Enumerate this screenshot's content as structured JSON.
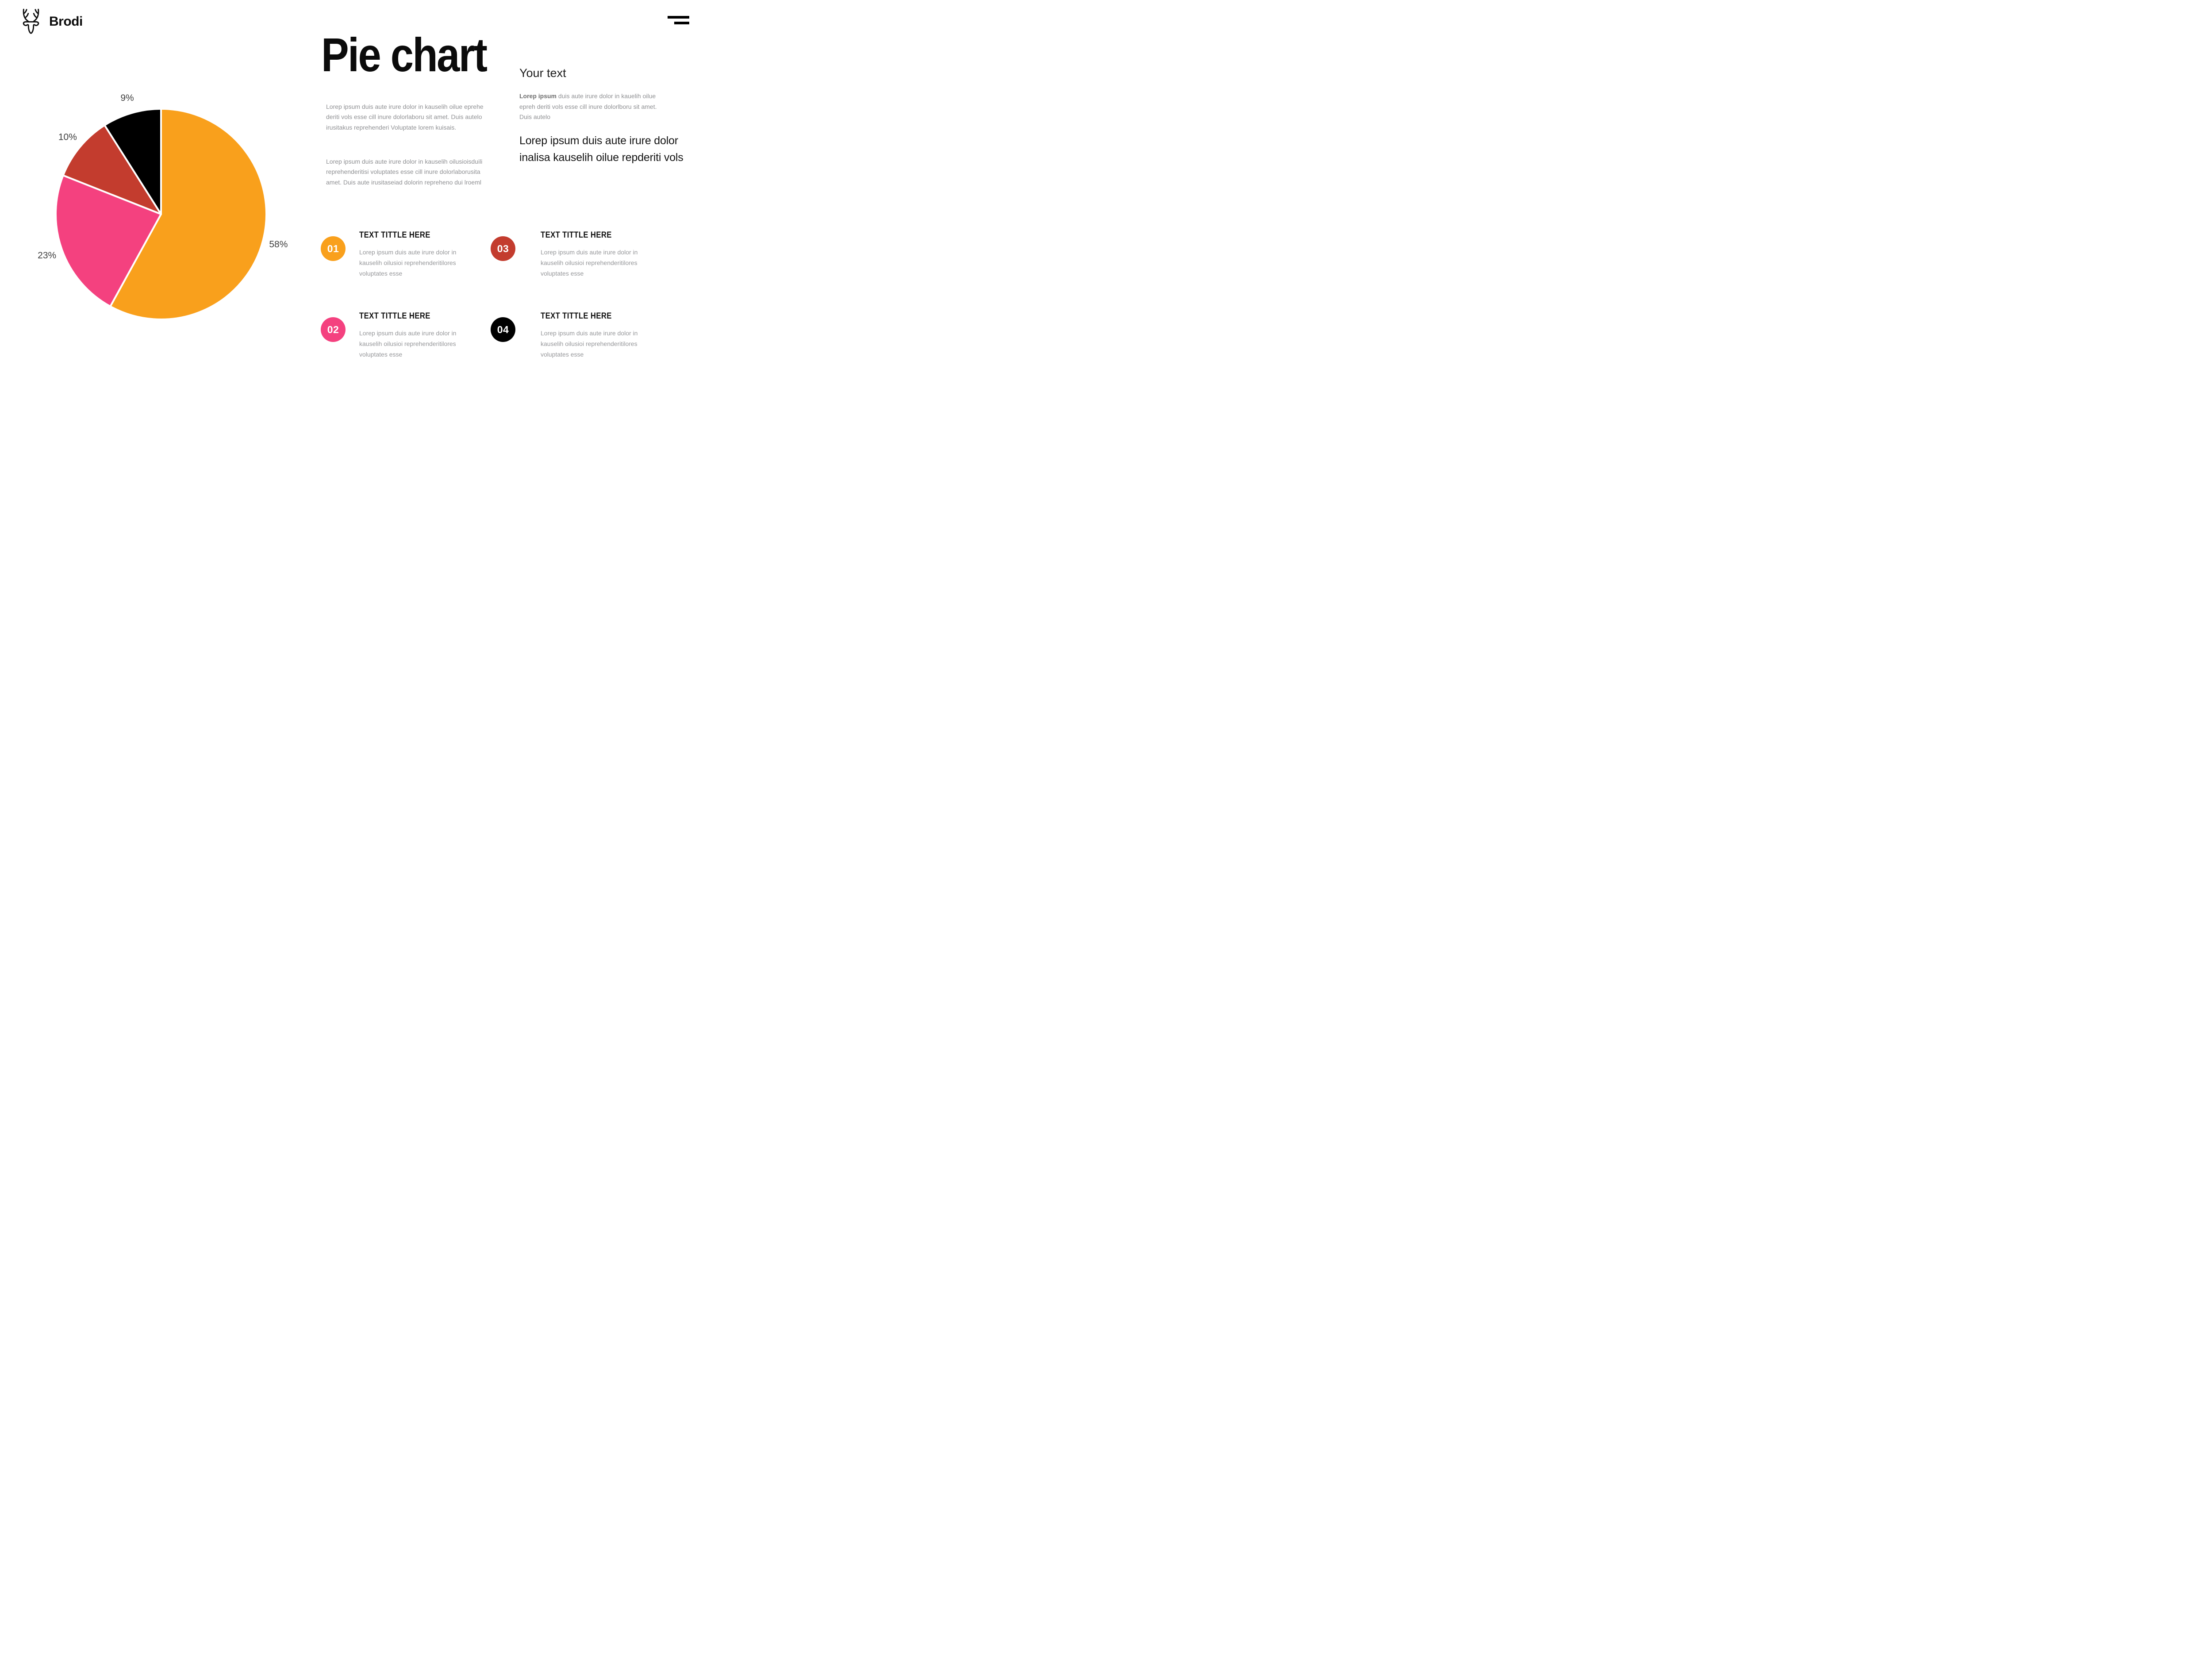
{
  "brand": {
    "name": "Brodi"
  },
  "hero": {
    "title": "Pie chart",
    "paragraph1": "Lorep  ipsum duis aute irure dolor in kauselih oilue eprehe\nderiti vols esse cill inure dolorlaboru sit amet. Duis autelo\nirusitakus reprehenderi Voluptate lorem kuisais.",
    "paragraph2": "Lorep  ipsum duis aute irure dolor in kauselih oilusioisduili\nreprehenderitisi voluptates esse cill inure dolorlaborusita\namet. Duis aute irusitaseiad dolorin repreheno dui lroeml"
  },
  "your_text": {
    "heading": "Your text",
    "lead_bold": "Lorep  ipsum",
    "lead_rest": " duis aute irure dolor in kauelih oilue\nepreh deriti vols esse cill inure dolorlboru sit amet.\nDuis autelo",
    "callout": "Lorep  ipsum duis aute irure dolor\ninalisa kauselih oilue repderiti vols"
  },
  "items": [
    {
      "number": "01",
      "title": "TEXT TITTLE HERE",
      "color": "#F9A01C",
      "body": "Lorep  ipsum duis aute irure dolor in\nkauselih oilusioi reprehenderitilores\nvoluptates esse"
    },
    {
      "number": "02",
      "title": "TEXT TITTLE HERE",
      "color": "#F4417F",
      "body": "Lorep  ipsum duis aute irure dolor in\nkauselih oilusioi reprehenderitilores\nvoluptates esse"
    },
    {
      "number": "03",
      "title": "TEXT TITTLE HERE",
      "color": "#C33C2E",
      "body": "Lorep  ipsum duis aute irure dolor in\nkauselih oilusioi reprehenderitilores\nvoluptates esse"
    },
    {
      "number": "04",
      "title": "TEXT TITTLE HERE",
      "color": "#000000",
      "body": "Lorep  ipsum duis aute irure dolor in\nkauselih oilusioi reprehenderitilores\nvoluptates esse"
    }
  ],
  "chart_data": {
    "type": "pie",
    "labels": [
      "58%",
      "23%",
      "10%",
      "9%"
    ],
    "values": [
      58,
      23,
      10,
      9
    ],
    "colors": [
      "#F9A01C",
      "#F4417F",
      "#C33C2E",
      "#000000"
    ],
    "start_angle_deg": 0,
    "direction": "clockwise",
    "separator_color": "#FFFFFF",
    "label_color": "#3F3F3F",
    "legend": "none",
    "title": ""
  }
}
